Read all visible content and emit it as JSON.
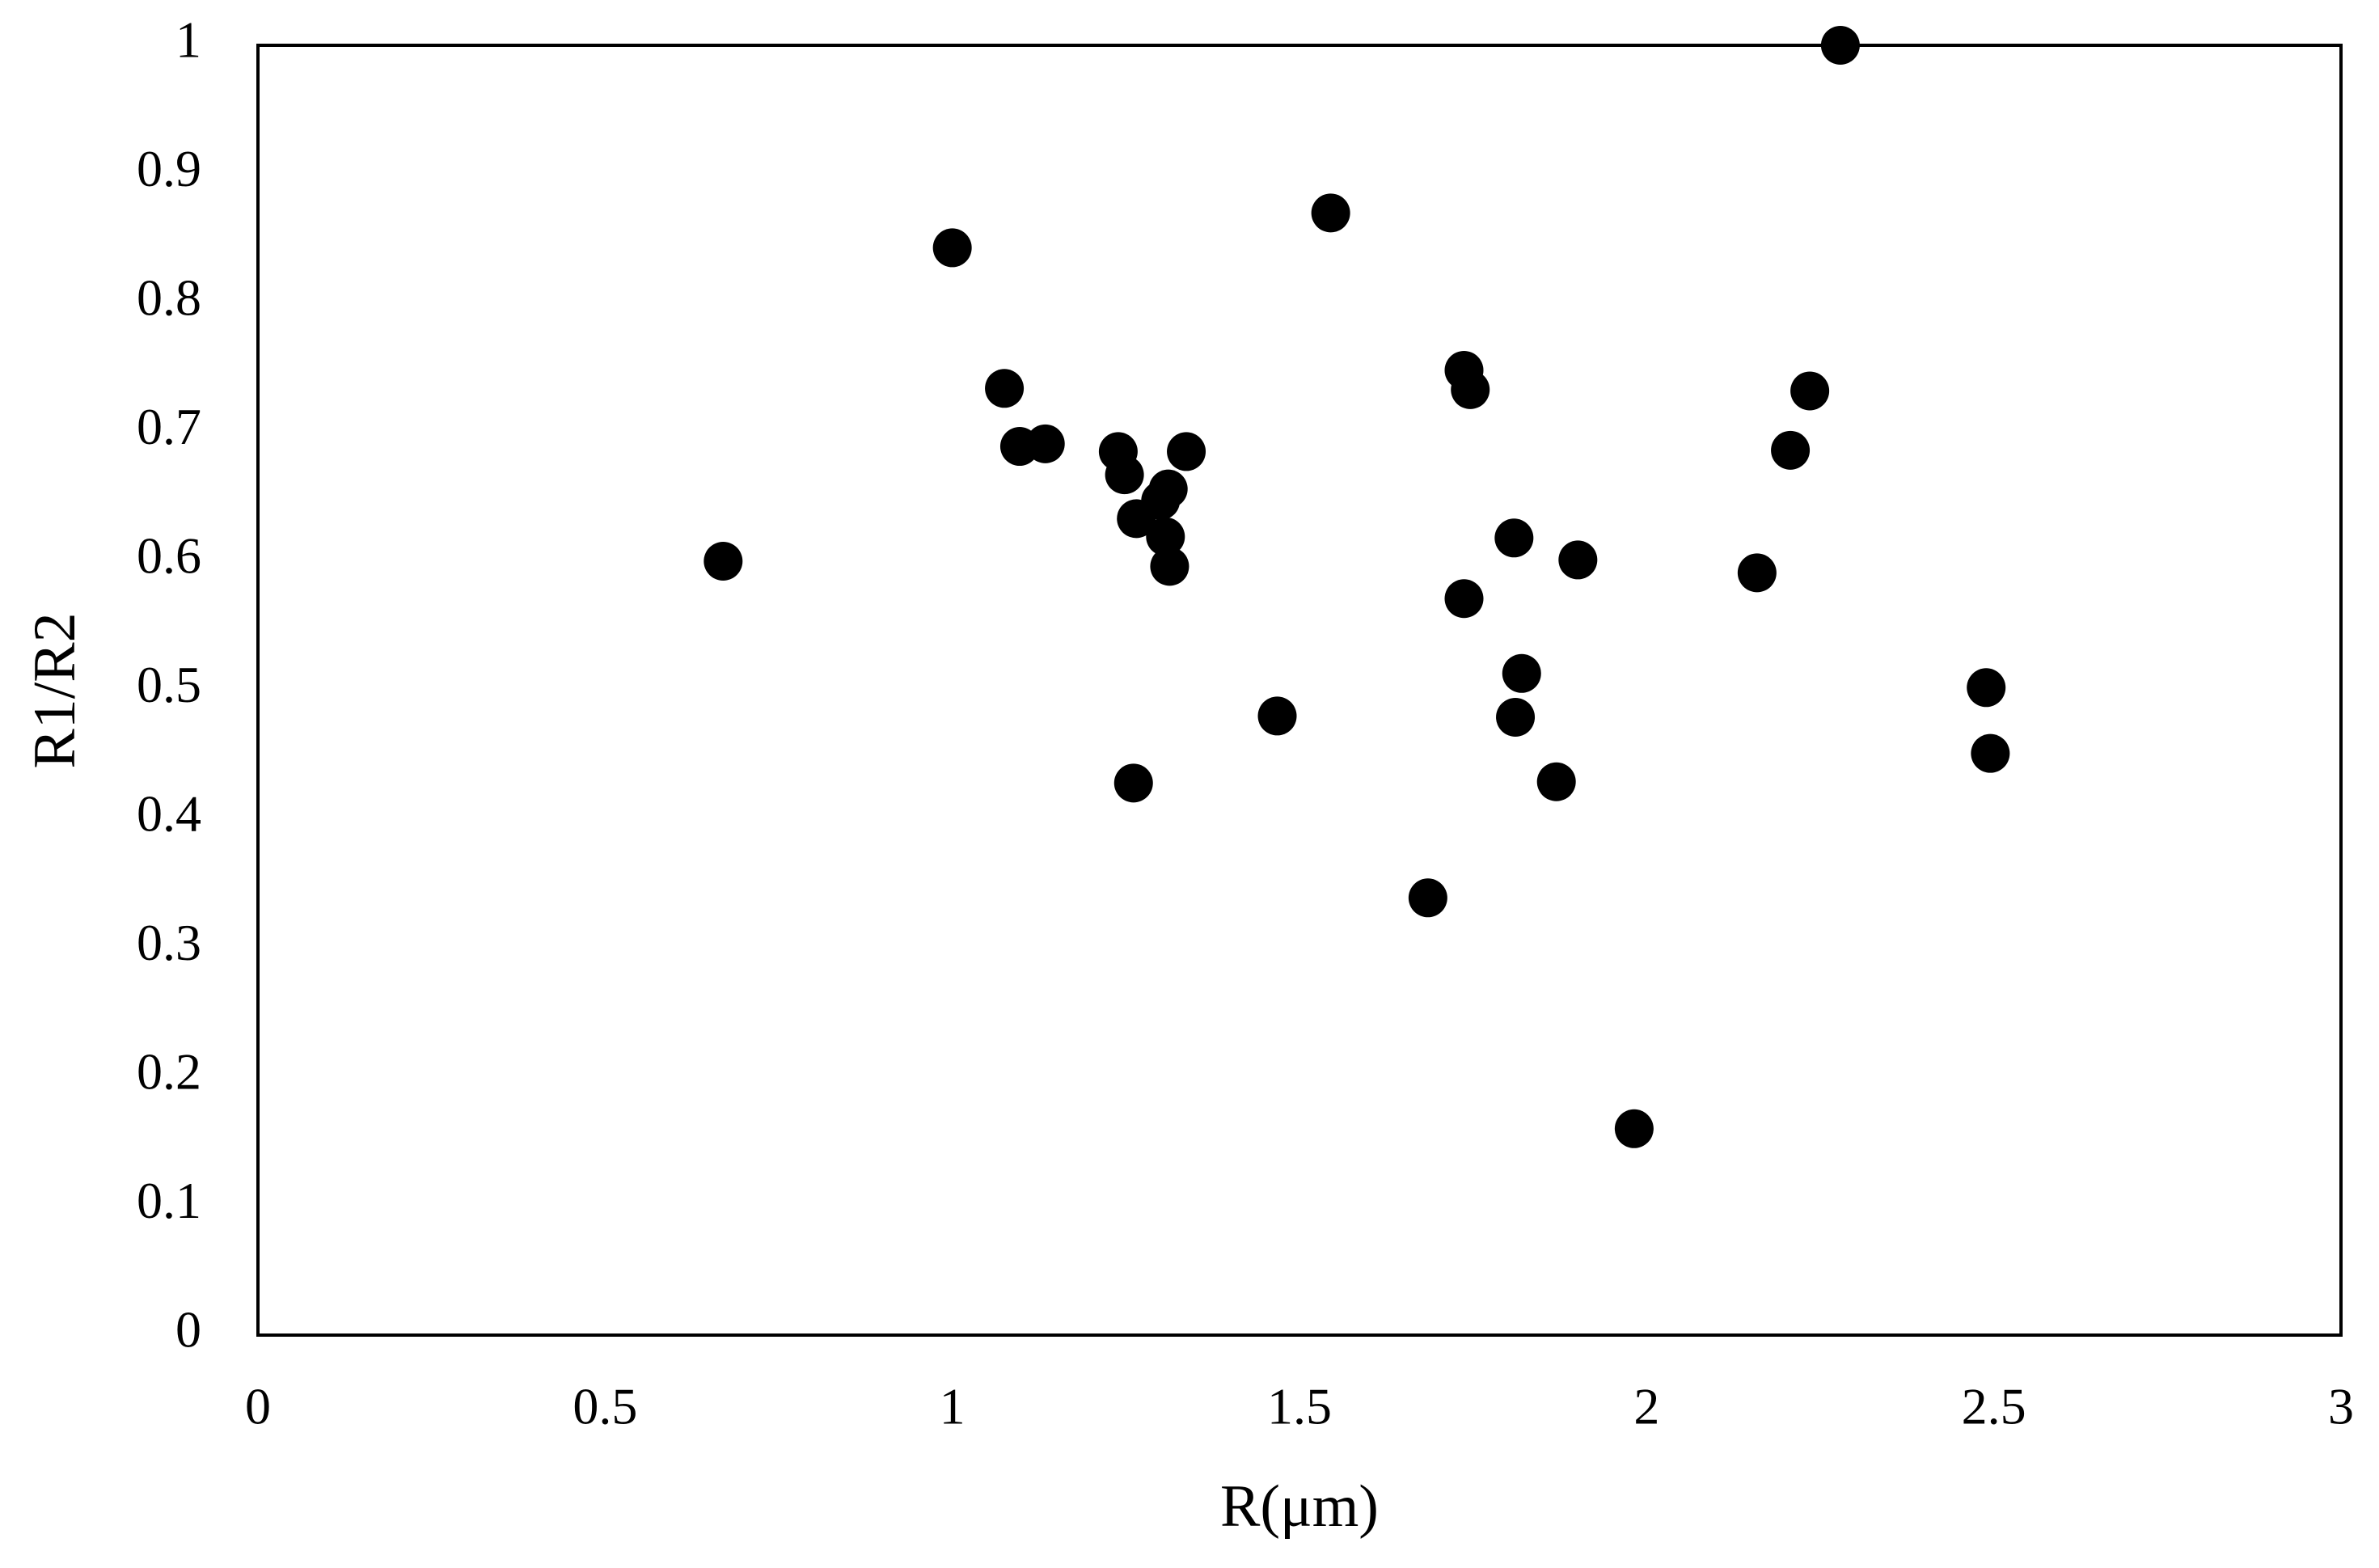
{
  "chart_data": {
    "type": "scatter",
    "x_label": "R(μm)",
    "y_label": "R1/R2",
    "color": "#000000",
    "x": [
      0.67,
      1.0,
      1.075,
      1.097,
      1.134,
      1.239,
      1.248,
      1.265,
      1.261,
      1.3,
      1.311,
      1.307,
      1.313,
      1.337,
      1.468,
      1.545,
      1.685,
      1.737,
      1.746,
      1.737,
      1.809,
      1.82,
      1.811,
      1.87,
      1.901,
      1.982,
      2.159,
      2.207,
      2.235,
      2.279,
      2.489,
      2.495
    ],
    "values": [
      0.6,
      0.843,
      0.734,
      0.689,
      0.691,
      0.685,
      0.667,
      0.633,
      0.428,
      0.647,
      0.656,
      0.619,
      0.596,
      0.685,
      0.48,
      0.87,
      0.339,
      0.748,
      0.733,
      0.571,
      0.618,
      0.513,
      0.479,
      0.429,
      0.601,
      0.16,
      0.591,
      0.686,
      0.732,
      1.0,
      0.502,
      0.451
    ],
    "xlim": [
      0,
      3
    ],
    "xticks": [
      0,
      0.5,
      1,
      1.5,
      2,
      2.5,
      3
    ],
    "ylim": [
      0,
      1
    ],
    "yticks": [
      0,
      0.1,
      0.2,
      0.3,
      0.4,
      0.5,
      0.6,
      0.7,
      0.8,
      0.9,
      1
    ]
  }
}
